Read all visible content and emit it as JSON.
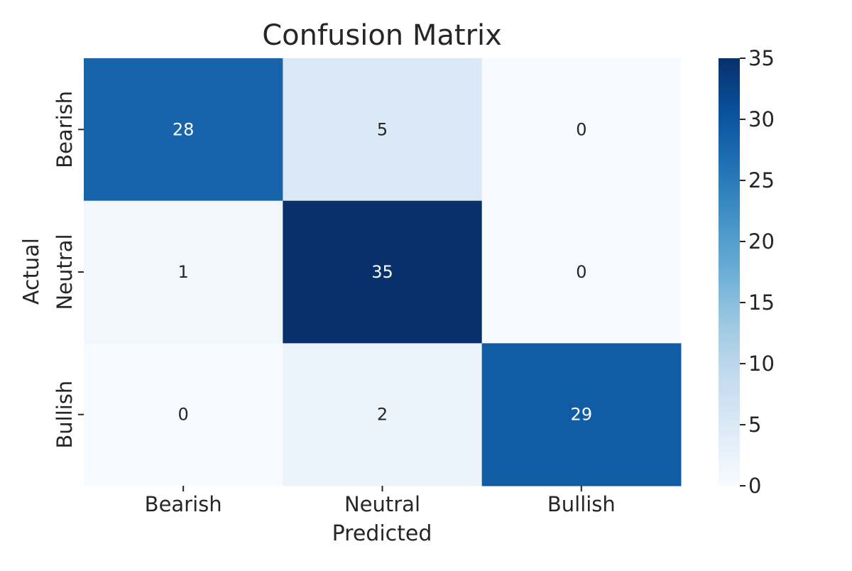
{
  "chart_data": {
    "type": "heatmap",
    "title": "Confusion Matrix",
    "xlabel": "Predicted",
    "ylabel": "Actual",
    "x_categories": [
      "Bearish",
      "Neutral",
      "Bullish"
    ],
    "y_categories": [
      "Bearish",
      "Neutral",
      "Bullish"
    ],
    "values": [
      [
        28,
        5,
        0
      ],
      [
        1,
        35,
        0
      ],
      [
        0,
        2,
        29
      ]
    ],
    "colormap": "Blues",
    "colorbar": {
      "min": 0,
      "max": 35,
      "ticks": [
        0,
        5,
        10,
        15,
        20,
        25,
        30,
        35
      ]
    },
    "annotated": true,
    "grid": false
  }
}
